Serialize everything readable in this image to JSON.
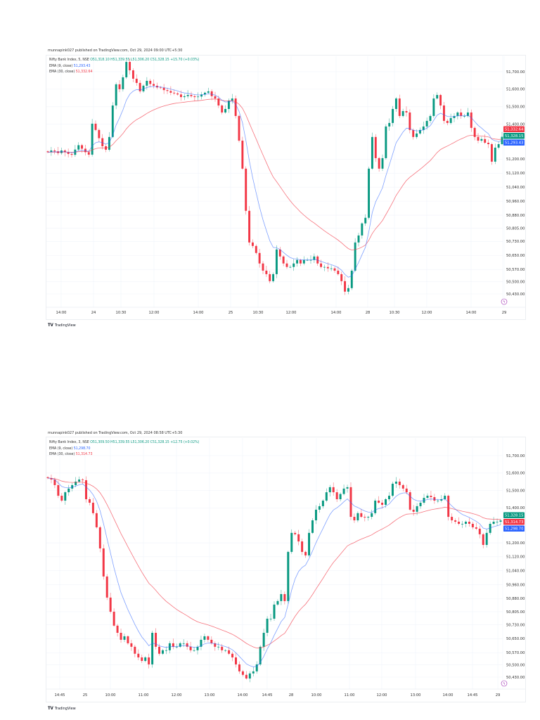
{
  "charts": [
    {
      "publisher_line": "munnapink027 published on TradingView.com, Oct 29, 2024 09:00 UTC+5:30",
      "symbol": "Nifty Bank Index, 5, NSE",
      "ohlc": "O51,318.10 H51,339.55 L51,306.20 C51,328.15 +15.70 (+0.03%)",
      "ema_fast_label": "EMA (9, close)",
      "ema_fast_value": "51,293.43",
      "ema_slow_label": "EMA (30, close)",
      "ema_slow_value": "51,332.64",
      "price_badges": [
        {
          "text": "51,332.64",
          "color": "#f23645",
          "value": 51332.64
        },
        {
          "text": "51,328.15",
          "color": "#089981",
          "value": 51328.15
        },
        {
          "text": "51,293.43",
          "color": "#2962ff",
          "value": 51293.43
        }
      ],
      "logo_text": "TradingView"
    },
    {
      "publisher_line": "munnapink027 published on TradingView.com, Oct 29, 2024 08:58 UTC+5:30",
      "symbol": "Nifty Bank Index, 3, NSE",
      "ohlc": "O51,309.50 H51,339.55 L51,306.20 C51,328.15 +12.75 (+0.02%)",
      "ema_fast_label": "EMA (9, close)",
      "ema_fast_value": "51,298.70",
      "ema_slow_label": "EMA (30, close)",
      "ema_slow_value": "51,314.73",
      "price_badges": [
        {
          "text": "51,328.15",
          "color": "#089981",
          "value": 51328.15
        },
        {
          "text": "51,314.73",
          "color": "#f23645",
          "value": 51314.73
        },
        {
          "text": "51,298.70",
          "color": "#2962ff",
          "value": 51298.7
        }
      ],
      "logo_text": "TradingView"
    }
  ],
  "chart_data": [
    {
      "type": "candlestick",
      "title": "Nifty Bank Index, 5, NSE",
      "ylim": [
        50430,
        51700
      ],
      "y_ticks": [
        "51,700.00",
        "51,600.00",
        "51,500.00",
        "51,400.00",
        "51,200.00",
        "51,120.00",
        "51,040.00",
        "50,960.00",
        "50,880.00",
        "50,805.00",
        "50,730.00",
        "50,650.00",
        "50,570.00",
        "50,500.00",
        "50,430.00"
      ],
      "y_tick_values": [
        51700,
        51600,
        51500,
        51400,
        51200,
        51120,
        51040,
        50960,
        50880,
        50805,
        50730,
        50650,
        50570,
        50500,
        50430
      ],
      "x_ticks": [
        "14:00",
        "24",
        "10:30",
        "12:00",
        "14:00",
        "25",
        "10:30",
        "12:00",
        "14:00",
        "28",
        "10:30",
        "12:00",
        "14:00",
        "29"
      ],
      "grid": true,
      "up_color": "#089981",
      "down_color": "#f23645",
      "ema_fast_color": "#2962ff",
      "ema_slow_color": "#f23645",
      "closes": [
        51240,
        51250,
        51245,
        51235,
        51250,
        51240,
        51230,
        51225,
        51255,
        51280,
        51260,
        51240,
        51226,
        51403,
        51367,
        51320,
        51274,
        51254,
        51327,
        51507,
        51628,
        51600,
        51668,
        51756,
        51708,
        51660,
        51636,
        51588,
        51620,
        51648,
        51630,
        51620,
        51610,
        51608,
        51595,
        51590,
        51580,
        51576,
        51570,
        51555,
        51560,
        51567,
        51560,
        51555,
        51558,
        51570,
        51580,
        51588,
        51560,
        51547,
        51507,
        51467,
        51487,
        51535,
        51547,
        51447,
        51306,
        51146,
        50905,
        50724,
        50704,
        50664,
        50604,
        50563,
        50543,
        50503,
        50543,
        50684,
        50644,
        50604,
        50584,
        50584,
        50604,
        50624,
        50604,
        50624,
        50624,
        50624,
        50644,
        50604,
        50584,
        50584,
        50576,
        50576,
        50563,
        50543,
        50503,
        50443,
        50463,
        50563,
        50724,
        50764,
        50833,
        50865,
        51146,
        51327,
        51206,
        51146,
        51206,
        51387,
        51407,
        51487,
        51547,
        51447,
        51475,
        51467,
        51367,
        51327,
        51347,
        51367,
        51387,
        51419,
        51447,
        51547,
        51567,
        51507,
        51419,
        51407,
        51435,
        51447,
        51467,
        51447,
        51447,
        51467,
        51379,
        51327,
        51306,
        51315,
        51294,
        51286,
        51186,
        51266,
        51286,
        51328
      ]
    },
    {
      "type": "candlestick",
      "title": "Nifty Bank Index, 3, NSE",
      "ylim": [
        50430,
        51700
      ],
      "y_ticks": [
        "51,700.00",
        "51,600.00",
        "51,500.00",
        "51,400.00",
        "51,200.00",
        "51,120.00",
        "51,040.00",
        "50,960.00",
        "50,880.00",
        "50,805.00",
        "50,730.00",
        "50,650.00",
        "50,570.00",
        "50,500.00",
        "50,430.00"
      ],
      "y_tick_values": [
        51700,
        51600,
        51500,
        51400,
        51200,
        51120,
        51040,
        50960,
        50880,
        50805,
        50730,
        50650,
        50570,
        50500,
        50430
      ],
      "x_ticks": [
        "14:45",
        "25",
        "10:00",
        "11:00",
        "12:00",
        "13:00",
        "14:00",
        "14:45",
        "28",
        "10:00",
        "11:00",
        "12:00",
        "13:00",
        "14:00",
        "14:45",
        "29"
      ],
      "grid": true,
      "up_color": "#089981",
      "down_color": "#f23645",
      "ema_fast_color": "#2962ff",
      "ema_slow_color": "#f23645",
      "closes": [
        51571,
        51563,
        51531,
        51470,
        51442,
        51490,
        51511,
        51531,
        51551,
        51563,
        51559,
        51450,
        51430,
        51370,
        51289,
        51168,
        51007,
        50886,
        50805,
        50725,
        50684,
        50644,
        50664,
        50624,
        50604,
        50564,
        50543,
        50523,
        50543,
        50503,
        50684,
        50604,
        50564,
        50584,
        50584,
        50624,
        50604,
        50604,
        50624,
        50624,
        50604,
        50584,
        50584,
        50604,
        50644,
        50664,
        50644,
        50624,
        50604,
        50604,
        50584,
        50584,
        50564,
        50543,
        50503,
        50463,
        50443,
        50422,
        50451,
        50463,
        50503,
        50604,
        50684,
        50765,
        50765,
        50846,
        50866,
        50906,
        50866,
        51148,
        51257,
        51249,
        51208,
        51148,
        51128,
        51257,
        51329,
        51390,
        51410,
        51442,
        51490,
        51519,
        51490,
        51450,
        51480,
        51511,
        51519,
        51349,
        51329,
        51370,
        51349,
        51345,
        51349,
        51370,
        51442,
        51430,
        51418,
        51450,
        51470,
        51539,
        51551,
        51531,
        51511,
        51490,
        51390,
        51378,
        51410,
        51430,
        51458,
        51470,
        51462,
        51442,
        51442,
        51450,
        51470,
        51349,
        51329,
        51321,
        51309,
        51309,
        51321,
        51309,
        51289,
        51281,
        51249,
        51188,
        51257,
        51309,
        51321,
        51321,
        51328
      ]
    }
  ]
}
